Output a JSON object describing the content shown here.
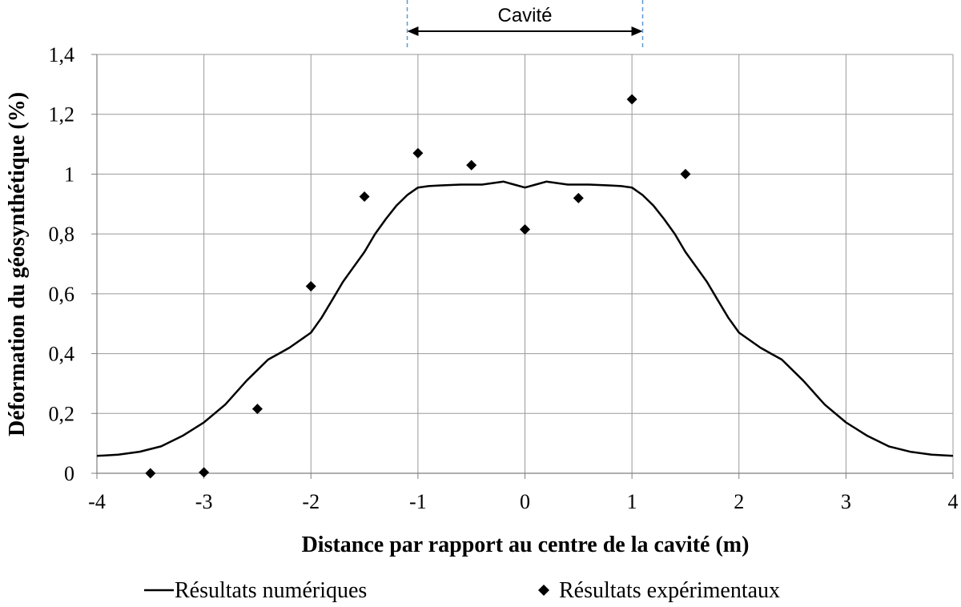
{
  "chart_data": {
    "type": "line",
    "title": "",
    "xlabel": "Distance par rapport au centre de la cavité (m)",
    "ylabel": "Déformation du géosynthétique (%)",
    "xlim": [
      -4,
      4
    ],
    "ylim": [
      0,
      1.4
    ],
    "x_ticks": [
      "-4",
      "-3",
      "-2",
      "-1",
      "0",
      "1",
      "2",
      "3",
      "4"
    ],
    "y_ticks": [
      "0",
      "0,2",
      "0,4",
      "0,6",
      "0,8",
      "1",
      "1,2",
      "1,4"
    ],
    "grid": true,
    "legend_position": "bottom",
    "annotation": {
      "label": "Cavité",
      "x_range": [
        -1.1,
        1.1
      ]
    },
    "series": [
      {
        "name": "Résultats numériques",
        "kind": "line",
        "color": "#000000",
        "x": [
          -4.0,
          -3.8,
          -3.6,
          -3.4,
          -3.2,
          -3.0,
          -2.8,
          -2.6,
          -2.4,
          -2.3,
          -2.2,
          -2.0,
          -1.9,
          -1.8,
          -1.7,
          -1.6,
          -1.5,
          -1.4,
          -1.3,
          -1.2,
          -1.1,
          -1.0,
          -0.9,
          -0.8,
          -0.6,
          -0.4,
          -0.3,
          -0.2,
          -0.1,
          0.0,
          0.1,
          0.2,
          0.3,
          0.4,
          0.6,
          0.8,
          0.9,
          1.0,
          1.1,
          1.2,
          1.3,
          1.4,
          1.5,
          1.6,
          1.7,
          1.8,
          1.9,
          2.0,
          2.2,
          2.3,
          2.4,
          2.6,
          2.8,
          3.0,
          3.2,
          3.4,
          3.6,
          3.8,
          4.0
        ],
        "y": [
          0.058,
          0.062,
          0.072,
          0.09,
          0.125,
          0.17,
          0.23,
          0.31,
          0.38,
          0.4,
          0.42,
          0.47,
          0.52,
          0.58,
          0.64,
          0.69,
          0.74,
          0.8,
          0.85,
          0.895,
          0.93,
          0.955,
          0.96,
          0.962,
          0.965,
          0.965,
          0.97,
          0.975,
          0.965,
          0.955,
          0.965,
          0.975,
          0.97,
          0.965,
          0.965,
          0.962,
          0.96,
          0.955,
          0.93,
          0.895,
          0.85,
          0.8,
          0.74,
          0.69,
          0.64,
          0.58,
          0.52,
          0.47,
          0.42,
          0.4,
          0.38,
          0.31,
          0.23,
          0.17,
          0.125,
          0.09,
          0.072,
          0.062,
          0.058
        ]
      },
      {
        "name": "Résultats expérimentaux",
        "kind": "scatter",
        "marker": "diamond",
        "color": "#000000",
        "x": [
          -3.5,
          -3.0,
          -2.5,
          -2.0,
          -1.5,
          -1.0,
          -0.5,
          0.0,
          0.5,
          1.0,
          1.5
        ],
        "y": [
          0.0,
          0.003,
          0.215,
          0.625,
          0.925,
          1.07,
          1.03,
          0.815,
          0.92,
          1.25,
          1.0
        ]
      }
    ]
  }
}
